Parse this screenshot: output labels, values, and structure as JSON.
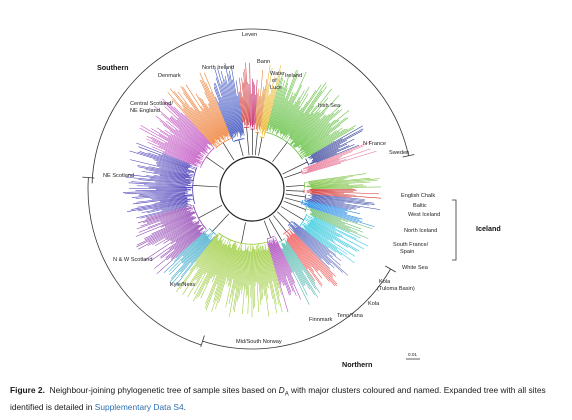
{
  "figure": {
    "scale_label": "0.01",
    "groups": [
      {
        "name": "Southern"
      },
      {
        "name": "Northern"
      },
      {
        "name": "Iceland"
      }
    ],
    "clusters": [
      {
        "label": "Leven",
        "color": "#d23a3a"
      },
      {
        "label": "Bann",
        "color": "#c2185b"
      },
      {
        "label": "Water of Luce",
        "color": "#e07a2e"
      },
      {
        "label": "Ireland",
        "color": "#e8b82a"
      },
      {
        "label": "North Ireland",
        "color": "#3a4fbf"
      },
      {
        "label": "Denmark",
        "color": "#c050c0"
      },
      {
        "label": "Irish Sea",
        "color": "#5fbe3c"
      },
      {
        "label": "N France",
        "color": "#283593"
      },
      {
        "label": "Sweden",
        "color": "#e87090"
      },
      {
        "label": "Central Scotland/ NE England",
        "color": "#ee7a2e"
      },
      {
        "label": "NE Scotland",
        "color": "#4a3db8"
      },
      {
        "label": "N & W Scotland",
        "color": "#8e3fb0"
      },
      {
        "label": "Kyle/Ness",
        "color": "#34a5c8"
      },
      {
        "label": "English Chalk",
        "color": "#7cc242"
      },
      {
        "label": "Baltic",
        "color": "#d32f2f"
      },
      {
        "label": "West Iceland",
        "color": "#3949ab"
      },
      {
        "label": "North Iceland",
        "color": "#1e88e5"
      },
      {
        "label": "South France/ Spain",
        "color": "#66bb6a"
      },
      {
        "label": "White Sea",
        "color": "#26c6da"
      },
      {
        "label": "Kola (Tuloma Basin)",
        "color": "#5c6bc0"
      },
      {
        "label": "Kola",
        "color": "#ef5350"
      },
      {
        "label": "Teno/Tana",
        "color": "#4db6ac"
      },
      {
        "label": "Finnmark",
        "color": "#ab47bc"
      },
      {
        "label": "Mid/South Norway",
        "color": "#9ccc3c"
      }
    ]
  },
  "caption": {
    "label": "Figure 2.",
    "text_before": "Neighbour-joining phylogenetic tree of sample sites based on ",
    "math_symbol": "D",
    "math_sub": "A",
    "text_after": " with major clusters coloured and named. Expanded tree with all sites identified is detailed in ",
    "link_text": "Supplementary Data S4",
    "end": "."
  }
}
